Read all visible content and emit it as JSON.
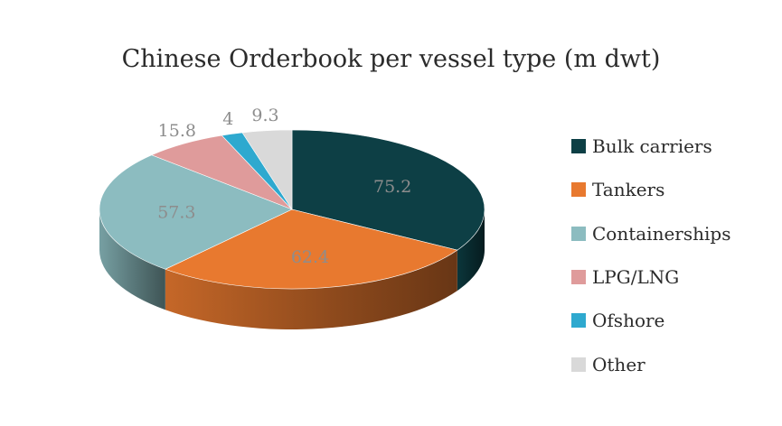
{
  "chart_data": {
    "type": "pie",
    "title": "Chinese Orderbook per vessel type (m dwt)",
    "slices": [
      {
        "label": "Bulk carriers",
        "value": 75.2,
        "value_label": "75.2",
        "color": "#0d3f45"
      },
      {
        "label": "Tankers",
        "value": 62.4,
        "value_label": "62.4",
        "color": "#e8792f"
      },
      {
        "label": "Containerships",
        "value": 57.3,
        "value_label": "57.3",
        "color": "#8cbcc0"
      },
      {
        "label": "LPG/LNG",
        "value": 15.8,
        "value_label": "15.8",
        "color": "#df9b9b"
      },
      {
        "label": "Ofshore",
        "value": 4,
        "value_label": "4",
        "color": "#2ea9cf"
      },
      {
        "label": "Other",
        "value": 9.3,
        "value_label": "9.3",
        "color": "#d9d9d9"
      }
    ],
    "legend_position": "right",
    "style": "3d"
  }
}
